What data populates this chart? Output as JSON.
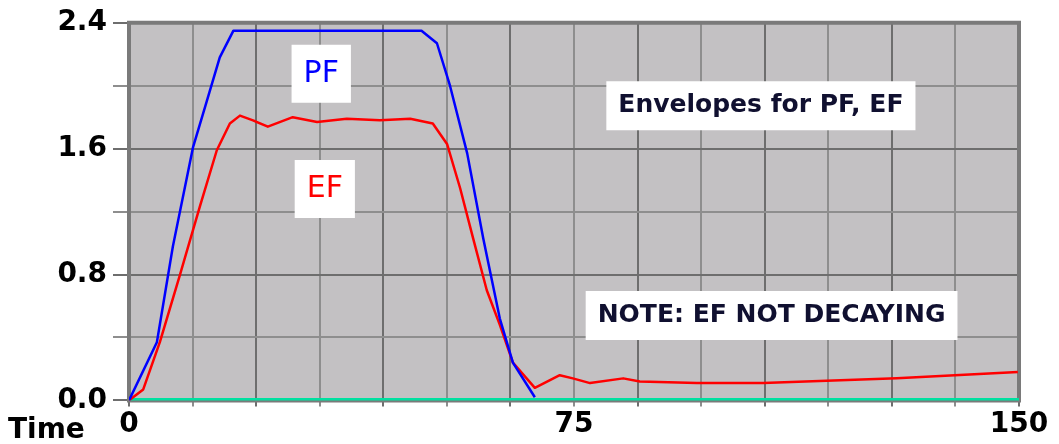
{
  "chart_data": {
    "type": "line",
    "xlabel": "Time",
    "xlim": [
      0,
      150
    ],
    "ylim": [
      0,
      2.4
    ],
    "xticks": [
      0,
      {
        "value": 10.71,
        "label": null
      },
      {
        "value": 21.43,
        "label": null
      },
      {
        "value": 32.14,
        "label": null
      },
      {
        "value": 42.86,
        "label": null
      },
      {
        "value": 53.57,
        "label": null
      },
      {
        "value": 64.29,
        "label": null
      },
      75,
      {
        "value": 85.71,
        "label": null
      },
      {
        "value": 96.43,
        "label": null
      },
      {
        "value": 107.14,
        "label": null
      },
      {
        "value": 117.86,
        "label": null
      },
      {
        "value": 128.57,
        "label": null
      },
      {
        "value": 139.29,
        "label": null
      },
      150
    ],
    "yticks": [
      {
        "value": 0,
        "label": "0.0"
      },
      {
        "value": 0.4,
        "label": null
      },
      {
        "value": 0.8,
        "label": "0.8"
      },
      {
        "value": 1.2,
        "label": null
      },
      {
        "value": 1.6,
        "label": "1.6"
      },
      {
        "value": 2.0,
        "label": null
      },
      {
        "value": 2.4,
        "label": "2.4"
      }
    ],
    "grid": true,
    "legend": false,
    "marker": "none",
    "line_style": "solid",
    "annotations": [
      "Envelopes for PF, EF",
      "NOTE: EF NOT DECAYING"
    ],
    "series": [
      {
        "name": "PF",
        "color": "#0000ff",
        "x": [
          0,
          4.7,
          7.4,
          10.8,
          13.1,
          15.3,
          17.6,
          20,
          30,
          40,
          49.3,
          51.9,
          54.1,
          57,
          59.7,
          62.5,
          64.7,
          68.4
        ],
        "values": [
          0,
          0.37,
          0.98,
          1.61,
          1.9,
          2.18,
          2.35,
          2.35,
          2.35,
          2.35,
          2.35,
          2.27,
          2.0,
          1.57,
          1.03,
          0.52,
          0.24,
          0.02
        ]
      },
      {
        "name": "EF",
        "color": "#ff0000",
        "x": [
          0,
          2.4,
          5.2,
          8.6,
          12,
          14.8,
          17,
          18.7,
          20.9,
          23.4,
          27.6,
          31.7,
          36.7,
          42.3,
          47.4,
          51.2,
          53.6,
          55.8,
          58,
          60.3,
          62.5,
          64.7,
          68.4,
          72.6,
          74.8,
          77.7,
          83.3,
          86.1,
          95.7,
          106.9,
          129.4,
          149.8
        ],
        "values": [
          0,
          0.07,
          0.37,
          0.8,
          1.24,
          1.59,
          1.76,
          1.81,
          1.78,
          1.74,
          1.8,
          1.77,
          1.79,
          1.78,
          1.79,
          1.76,
          1.63,
          1.35,
          1.03,
          0.7,
          0.48,
          0.24,
          0.08,
          0.16,
          0.14,
          0.11,
          0.14,
          0.12,
          0.11,
          0.11,
          0.14,
          0.18
        ]
      },
      {
        "color": "#00e0a0",
        "x": [
          0,
          150
        ],
        "values": [
          0,
          0
        ]
      }
    ]
  }
}
